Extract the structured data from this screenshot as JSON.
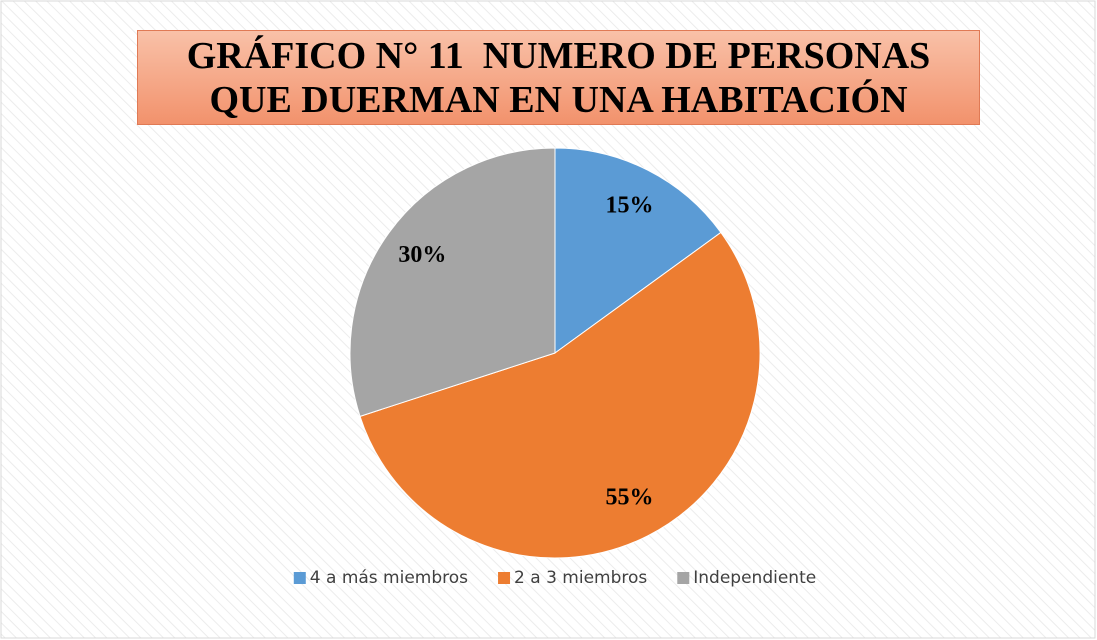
{
  "chart_data": {
    "type": "pie",
    "title": "GRÁFICO N° 11  NUMERO DE PERSONAS QUE DUERMAN EN UNA HABITACIÓN",
    "categories": [
      "4 a más miembros",
      "2 a 3 miembros",
      "Independiente"
    ],
    "values": [
      15,
      55,
      30
    ],
    "value_labels": [
      "15%",
      "55%",
      "30%"
    ],
    "colors": [
      "#5b9bd5",
      "#ed7d31",
      "#a5a5a5"
    ],
    "legend": "bottom"
  }
}
